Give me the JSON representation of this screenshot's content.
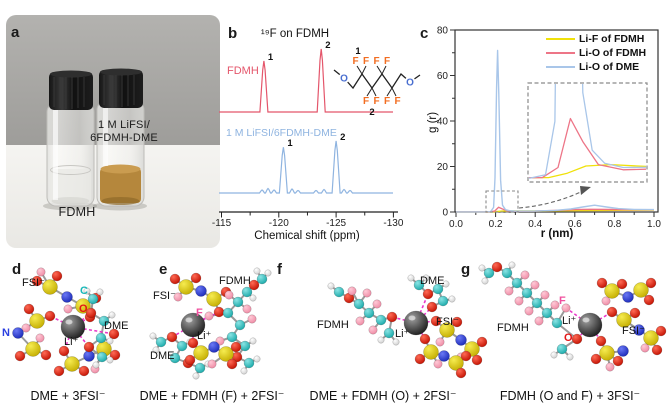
{
  "panels": {
    "a": {
      "letter": "a",
      "left_vial_label": "FDMH",
      "right_vial_label_line1": "1 M LiFSI/",
      "right_vial_label_line2": "6FDMH-DME"
    },
    "b": {
      "letter": "b",
      "title": "¹⁹F on FDMH",
      "trace1_label": "FDMH",
      "trace2_label": "1 M LiFSI/6FDMH-DME",
      "xlabel": "Chemical shift (ppm)",
      "structure": {
        "o": "O",
        "f": "F",
        "pos1": "1",
        "pos2": "2"
      }
    },
    "c": {
      "letter": "c",
      "xlabel": "r (nm)",
      "ylabel": "g (r)"
    },
    "d": {
      "letter": "d",
      "caption": "DME + 3FSI⁻",
      "labels": {
        "fsi": "FSI⁻",
        "c": "C",
        "o": "O",
        "dme": "DME",
        "n": "N",
        "li": "Li⁺"
      }
    },
    "e": {
      "letter": "e",
      "caption": "DME + FDMH (F) + 2FSI⁻",
      "labels": {
        "fsi": "FSI⁻",
        "fdmh": "FDMH",
        "f": "F",
        "li": "Li⁺",
        "dme": "DME"
      }
    },
    "f": {
      "letter": "f",
      "caption": "DME + FDMH (O) + 2FSI⁻",
      "labels": {
        "dme": "DME",
        "fdmh": "FDMH",
        "li": "Li⁺",
        "fsi": "FSI⁻"
      }
    },
    "g": {
      "letter": "g",
      "caption": "FDMH (O and F) + 3FSI⁻",
      "labels": {
        "f": "F",
        "fdmh": "FDMH",
        "li": "Li⁺",
        "o": "O",
        "fsi": "FSI⁻"
      }
    }
  },
  "chart_data": [
    {
      "type": "line",
      "panel": "b",
      "title": "¹⁹F on FDMH",
      "xlabel": "Chemical shift (ppm)",
      "xlim": [
        -115,
        -130
      ],
      "xticks": [
        -115,
        -120,
        -125,
        -130
      ],
      "series": [
        {
          "name": "FDMH",
          "color": "#e4566b",
          "peaks": [
            {
              "ppm": -118.7,
              "rel": 0.81,
              "label": "1"
            },
            {
              "ppm": -123.7,
              "rel": 1.0,
              "label": "2"
            }
          ]
        },
        {
          "name": "1 M LiFSI/6FDMH-DME",
          "color": "#8fb4e0",
          "peaks": [
            {
              "ppm": -120.4,
              "rel": 0.88,
              "label": "1"
            },
            {
              "ppm": -125.0,
              "rel": 1.0,
              "label": "2"
            }
          ]
        }
      ]
    },
    {
      "type": "line",
      "panel": "c",
      "xlabel": "r (nm)",
      "ylabel": "g (r)",
      "xlim": [
        0.0,
        1.0
      ],
      "ylim": [
        0,
        80
      ],
      "xticks": [
        "0.0",
        "0.2",
        "0.4",
        "0.6",
        "0.8",
        "1.0"
      ],
      "yticks": [
        0,
        20,
        40,
        60,
        80
      ],
      "legend_position": "top-right",
      "inset": {
        "xlim": [
          0.15,
          0.335
        ],
        "ylim": [
          0,
          3.3
        ]
      },
      "series": [
        {
          "name": "Li-F of FDMH",
          "color": "#f0e10a",
          "points": [
            [
              0,
              0.03
            ],
            [
              0.18,
              0.05
            ],
            [
              0.21,
              0.2
            ],
            [
              0.24,
              0.45
            ],
            [
              0.28,
              0.5
            ],
            [
              0.35,
              0.42
            ],
            [
              0.45,
              0.45
            ],
            [
              0.55,
              0.55
            ],
            [
              0.65,
              0.65
            ],
            [
              0.75,
              0.72
            ],
            [
              0.85,
              0.8
            ],
            [
              1.0,
              0.88
            ]
          ]
        },
        {
          "name": "Li-O of FDMH",
          "color": "#ed7587",
          "points": [
            [
              0,
              0.03
            ],
            [
              0.17,
              0.05
            ],
            [
              0.195,
              0.4
            ],
            [
              0.215,
              2.1
            ],
            [
              0.235,
              1.3
            ],
            [
              0.26,
              0.5
            ],
            [
              0.3,
              0.32
            ],
            [
              0.4,
              0.38
            ],
            [
              0.5,
              0.7
            ],
            [
              0.6,
              1.05
            ],
            [
              0.68,
              1.2
            ],
            [
              0.78,
              1.1
            ],
            [
              0.9,
              1.0
            ],
            [
              1.0,
              1.0
            ]
          ]
        },
        {
          "name": "Li-O of DME",
          "color": "#a9c6e9",
          "points": [
            [
              0,
              0.03
            ],
            [
              0.15,
              0.03
            ],
            [
              0.175,
              0.15
            ],
            [
              0.19,
              2
            ],
            [
              0.197,
              15
            ],
            [
              0.205,
              55
            ],
            [
              0.21,
              71
            ],
            [
              0.216,
              52
            ],
            [
              0.225,
              14
            ],
            [
              0.235,
              3
            ],
            [
              0.25,
              1
            ],
            [
              0.27,
              0.55
            ],
            [
              0.3,
              0.4
            ],
            [
              0.4,
              0.42
            ],
            [
              0.5,
              0.7
            ],
            [
              0.58,
              1.3
            ],
            [
              0.64,
              2.2
            ],
            [
              0.7,
              3
            ],
            [
              0.76,
              2.2
            ],
            [
              0.82,
              1.5
            ],
            [
              0.9,
              1.15
            ],
            [
              1.0,
              1.05
            ]
          ]
        }
      ]
    }
  ]
}
